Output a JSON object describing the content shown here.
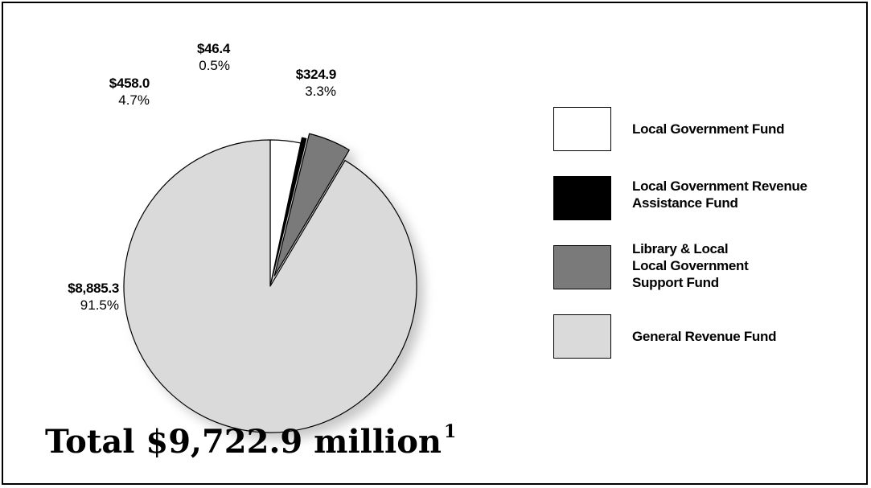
{
  "chart_data": {
    "type": "pie",
    "exploded": true,
    "slices": [
      {
        "name": "Local Government Fund",
        "value": 324.9,
        "value_label": "$324.9",
        "percent_label": "3.3%",
        "color": "#ffffff"
      },
      {
        "name": "Local Government Revenue Assistance Fund",
        "value": 46.4,
        "value_label": "$46.4",
        "percent_label": "0.5%",
        "color": "#000000"
      },
      {
        "name": "Library & Local Local Government Support Fund",
        "value": 458.0,
        "value_label": "$458.0",
        "percent_label": "4.7%",
        "color": "#7a7a7a"
      },
      {
        "name": "General Revenue Fund",
        "value": 8885.3,
        "value_label": "$8,885.3",
        "percent_label": "91.5%",
        "color": "#dadada"
      }
    ],
    "total": 9722.9,
    "legend_position": "right"
  },
  "legend": [
    {
      "lines": [
        "Local Government Fund"
      ],
      "color": "#ffffff"
    },
    {
      "lines": [
        "Local Government Revenue",
        "Assistance Fund"
      ],
      "color": "#000000"
    },
    {
      "lines": [
        "Library & Local",
        "Local Government",
        "Support Fund"
      ],
      "color": "#7a7a7a"
    },
    {
      "lines": [
        "General Revenue Fund"
      ],
      "color": "#dadada"
    }
  ],
  "total": {
    "text": "Total $9,722.9 million",
    "footnote": "1"
  }
}
